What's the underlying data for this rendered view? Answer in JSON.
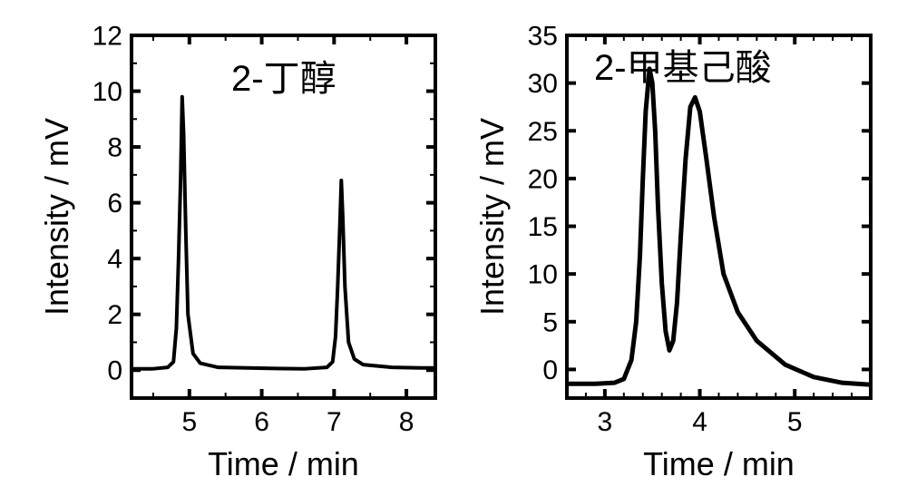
{
  "figure": {
    "background_color": "#ffffff",
    "stroke_color": "#000000",
    "plots": [
      {
        "id": "left",
        "type": "line",
        "title": "2-丁醇",
        "title_fontsize": 40,
        "axis_label_fontsize": 36,
        "tick_fontsize": 30,
        "xlabel": "Time  / min",
        "ylabel": "Intensity / mV",
        "xlim": [
          4.2,
          8.4
        ],
        "ylim": [
          -1,
          12
        ],
        "xticks": [
          5,
          6,
          7,
          8
        ],
        "yticks": [
          0,
          2,
          4,
          6,
          8,
          10,
          12
        ],
        "line_color": "#000000",
        "line_width": 4,
        "axis_line_width": 4,
        "tick_len_major": 10,
        "tick_len_minor": 6,
        "x_minor_per_major": 1,
        "y_minor_per_major": 1,
        "points": [
          [
            4.2,
            0.05
          ],
          [
            4.5,
            0.05
          ],
          [
            4.7,
            0.1
          ],
          [
            4.78,
            0.3
          ],
          [
            4.82,
            1.5
          ],
          [
            4.85,
            4.0
          ],
          [
            4.88,
            7.0
          ],
          [
            4.9,
            9.8
          ],
          [
            4.92,
            8.5
          ],
          [
            4.95,
            5.0
          ],
          [
            4.98,
            2.0
          ],
          [
            5.05,
            0.6
          ],
          [
            5.15,
            0.25
          ],
          [
            5.4,
            0.1
          ],
          [
            5.8,
            0.08
          ],
          [
            6.2,
            0.06
          ],
          [
            6.6,
            0.05
          ],
          [
            6.9,
            0.1
          ],
          [
            6.98,
            0.3
          ],
          [
            7.02,
            1.2
          ],
          [
            7.05,
            3.0
          ],
          [
            7.08,
            5.2
          ],
          [
            7.1,
            6.8
          ],
          [
            7.12,
            5.5
          ],
          [
            7.15,
            3.0
          ],
          [
            7.2,
            1.0
          ],
          [
            7.28,
            0.4
          ],
          [
            7.4,
            0.2
          ],
          [
            7.8,
            0.1
          ],
          [
            8.2,
            0.08
          ],
          [
            8.4,
            0.08
          ]
        ]
      },
      {
        "id": "right",
        "type": "line",
        "title": "2-甲基己酸",
        "title_fontsize": 40,
        "axis_label_fontsize": 36,
        "tick_fontsize": 30,
        "xlabel": "Time  / min",
        "ylabel": "Intensity / mV",
        "xlim": [
          2.6,
          5.8
        ],
        "ylim": [
          -3,
          35
        ],
        "xticks": [
          3,
          4,
          5
        ],
        "yticks": [
          0,
          5,
          10,
          15,
          20,
          25,
          30,
          35
        ],
        "line_color": "#000000",
        "line_width": 5,
        "axis_line_width": 4,
        "tick_len_major": 10,
        "tick_len_minor": 6,
        "x_minor_per_major": 4,
        "y_minor_per_major": 0,
        "points": [
          [
            2.6,
            -1.5
          ],
          [
            2.9,
            -1.5
          ],
          [
            3.1,
            -1.4
          ],
          [
            3.2,
            -1.0
          ],
          [
            3.28,
            1.0
          ],
          [
            3.33,
            5.0
          ],
          [
            3.37,
            12.0
          ],
          [
            3.4,
            20.0
          ],
          [
            3.43,
            27.0
          ],
          [
            3.47,
            31.5
          ],
          [
            3.5,
            30.0
          ],
          [
            3.53,
            25.0
          ],
          [
            3.56,
            17.0
          ],
          [
            3.6,
            9.0
          ],
          [
            3.64,
            4.0
          ],
          [
            3.68,
            2.0
          ],
          [
            3.72,
            3.0
          ],
          [
            3.76,
            7.0
          ],
          [
            3.8,
            14.0
          ],
          [
            3.85,
            22.0
          ],
          [
            3.9,
            27.5
          ],
          [
            3.95,
            28.5
          ],
          [
            4.0,
            27.0
          ],
          [
            4.07,
            22.0
          ],
          [
            4.15,
            16.0
          ],
          [
            4.25,
            10.0
          ],
          [
            4.4,
            6.0
          ],
          [
            4.6,
            3.0
          ],
          [
            4.9,
            0.5
          ],
          [
            5.2,
            -0.8
          ],
          [
            5.5,
            -1.4
          ],
          [
            5.8,
            -1.6
          ]
        ]
      }
    ]
  }
}
